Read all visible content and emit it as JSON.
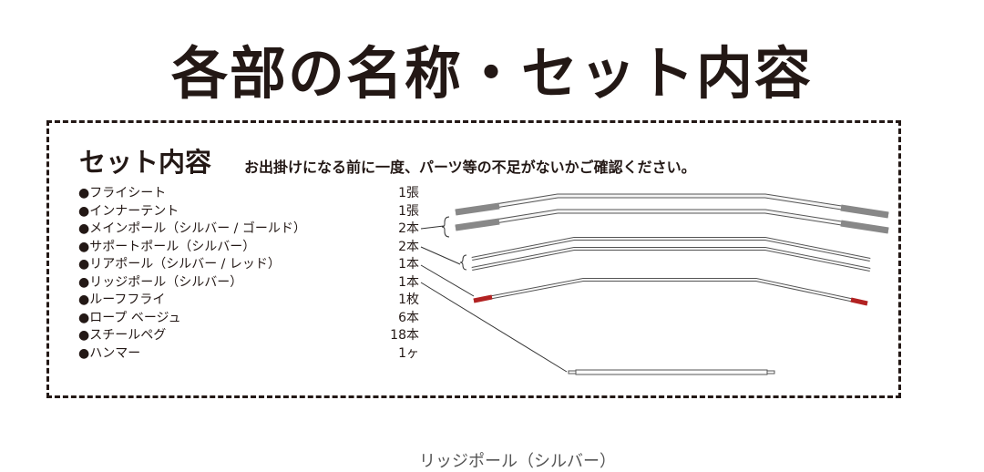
{
  "title": "各部の名称・セット内容",
  "section": {
    "heading": "セット内容",
    "note": "お出掛けになる前に一度、パーツ等の不足がないかご確認ください。"
  },
  "items": [
    {
      "name": "●フライシート",
      "qty": "1張"
    },
    {
      "name": "●インナーテント",
      "qty": "1張"
    },
    {
      "name": "●メインポール（シルバー / ゴールド）",
      "qty": "2本"
    },
    {
      "name": "●サポートポール（シルバー）",
      "qty": "2本"
    },
    {
      "name": "●リアポール（シルバー / レッド）",
      "qty": "1本"
    },
    {
      "name": "●リッジポール（シルバー）",
      "qty": "1本"
    },
    {
      "name": "●ルーフフライ",
      "qty": "1枚"
    },
    {
      "name": "●ロープ ベージュ",
      "qty": "6本"
    },
    {
      "name": "●スチールペグ",
      "qty": "18本"
    },
    {
      "name": "●ハンマー",
      "qty": "1ヶ"
    }
  ],
  "footer": "リッジポール（シルバー）",
  "colors": {
    "text": "#231815",
    "pole_tip_main": "#888888",
    "pole_tip_rear": "#b22222"
  }
}
